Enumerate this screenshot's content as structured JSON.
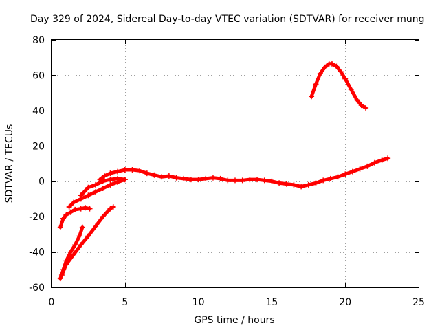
{
  "chart_data": {
    "type": "line",
    "title": "Day 329 of 2024, Sidereal Day-to-day VTEC variation (SDTVAR) for receiver mung",
    "xlabel": "GPS time / hours",
    "ylabel": "SDTVAR / TECUs",
    "xlim": [
      0,
      25
    ],
    "ylim": [
      -60,
      80
    ],
    "xticks": [
      0,
      5,
      10,
      15,
      20,
      25
    ],
    "yticks": [
      -60,
      -40,
      -20,
      0,
      20,
      40,
      60,
      80
    ],
    "grid": true,
    "legend": "none",
    "color": "#ff0000",
    "series": [
      {
        "name": "segment-1",
        "x": [
          0.6,
          0.8,
          1.0,
          1.3,
          1.6,
          2.0,
          2.3,
          2.6
        ],
        "y": [
          -26,
          -21,
          -19,
          -17.5,
          -16,
          -15.5,
          -15,
          -15.5
        ]
      },
      {
        "name": "segment-2",
        "x": [
          0.6,
          0.8,
          1.0,
          1.3,
          1.6,
          1.9,
          2.1
        ],
        "y": [
          -55,
          -50,
          -45,
          -40,
          -36,
          -31,
          -26
        ]
      },
      {
        "name": "segment-3",
        "x": [
          0.7,
          1.0,
          1.5,
          2.0,
          2.5,
          3.0,
          3.5,
          4.0,
          4.2
        ],
        "y": [
          -53,
          -47,
          -41.5,
          -36,
          -31,
          -25.5,
          -20,
          -15.5,
          -14.5
        ]
      },
      {
        "name": "segment-4",
        "x": [
          2.0,
          2.5,
          3.0,
          3.5,
          4.0,
          4.5,
          5.0
        ],
        "y": [
          -8,
          -3.5,
          -2,
          0,
          1,
          1.5,
          1
        ]
      },
      {
        "name": "segment-5",
        "x": [
          1.2,
          1.5,
          2.0,
          2.5,
          3.0,
          3.5,
          4.0,
          4.5,
          5.0
        ],
        "y": [
          -14.5,
          -12,
          -10,
          -8,
          -6,
          -4,
          -2,
          -0.5,
          1
        ]
      },
      {
        "name": "segment-6",
        "x": [
          3.3,
          3.6,
          4.0,
          4.5,
          5.0,
          5.5,
          6.0,
          6.5,
          7.0,
          7.5,
          8.0,
          8.5,
          9.0,
          9.5,
          10.0,
          10.5,
          11.0,
          11.5,
          12.0,
          12.5,
          13.0,
          13.5,
          14.0,
          14.5,
          15.0,
          15.5,
          16.0,
          16.5,
          17.0,
          17.5,
          18.0,
          18.5,
          19.0,
          19.5,
          20.0,
          20.5,
          21.0,
          21.5,
          22.0,
          22.5,
          22.9
        ],
        "y": [
          1,
          3,
          4.5,
          5.5,
          6.5,
          6.5,
          6,
          4.5,
          3.5,
          2.5,
          3,
          2,
          1.5,
          1,
          1,
          1.5,
          2,
          1.5,
          0.5,
          0.5,
          0.5,
          1,
          1,
          0.5,
          0,
          -1,
          -1.5,
          -2,
          -3,
          -2,
          -1,
          0.5,
          1.5,
          2.5,
          4,
          5.5,
          7,
          8.5,
          10.5,
          12,
          13
        ]
      },
      {
        "name": "segment-7",
        "x": [
          17.7,
          18.0,
          18.3,
          18.6,
          18.9,
          19.1,
          19.4,
          19.7,
          20.0,
          20.4,
          20.8,
          21.1,
          21.4
        ],
        "y": [
          48,
          55,
          61,
          64.5,
          66.5,
          66.5,
          65,
          62,
          58,
          52,
          46,
          43,
          41.5
        ]
      }
    ]
  }
}
